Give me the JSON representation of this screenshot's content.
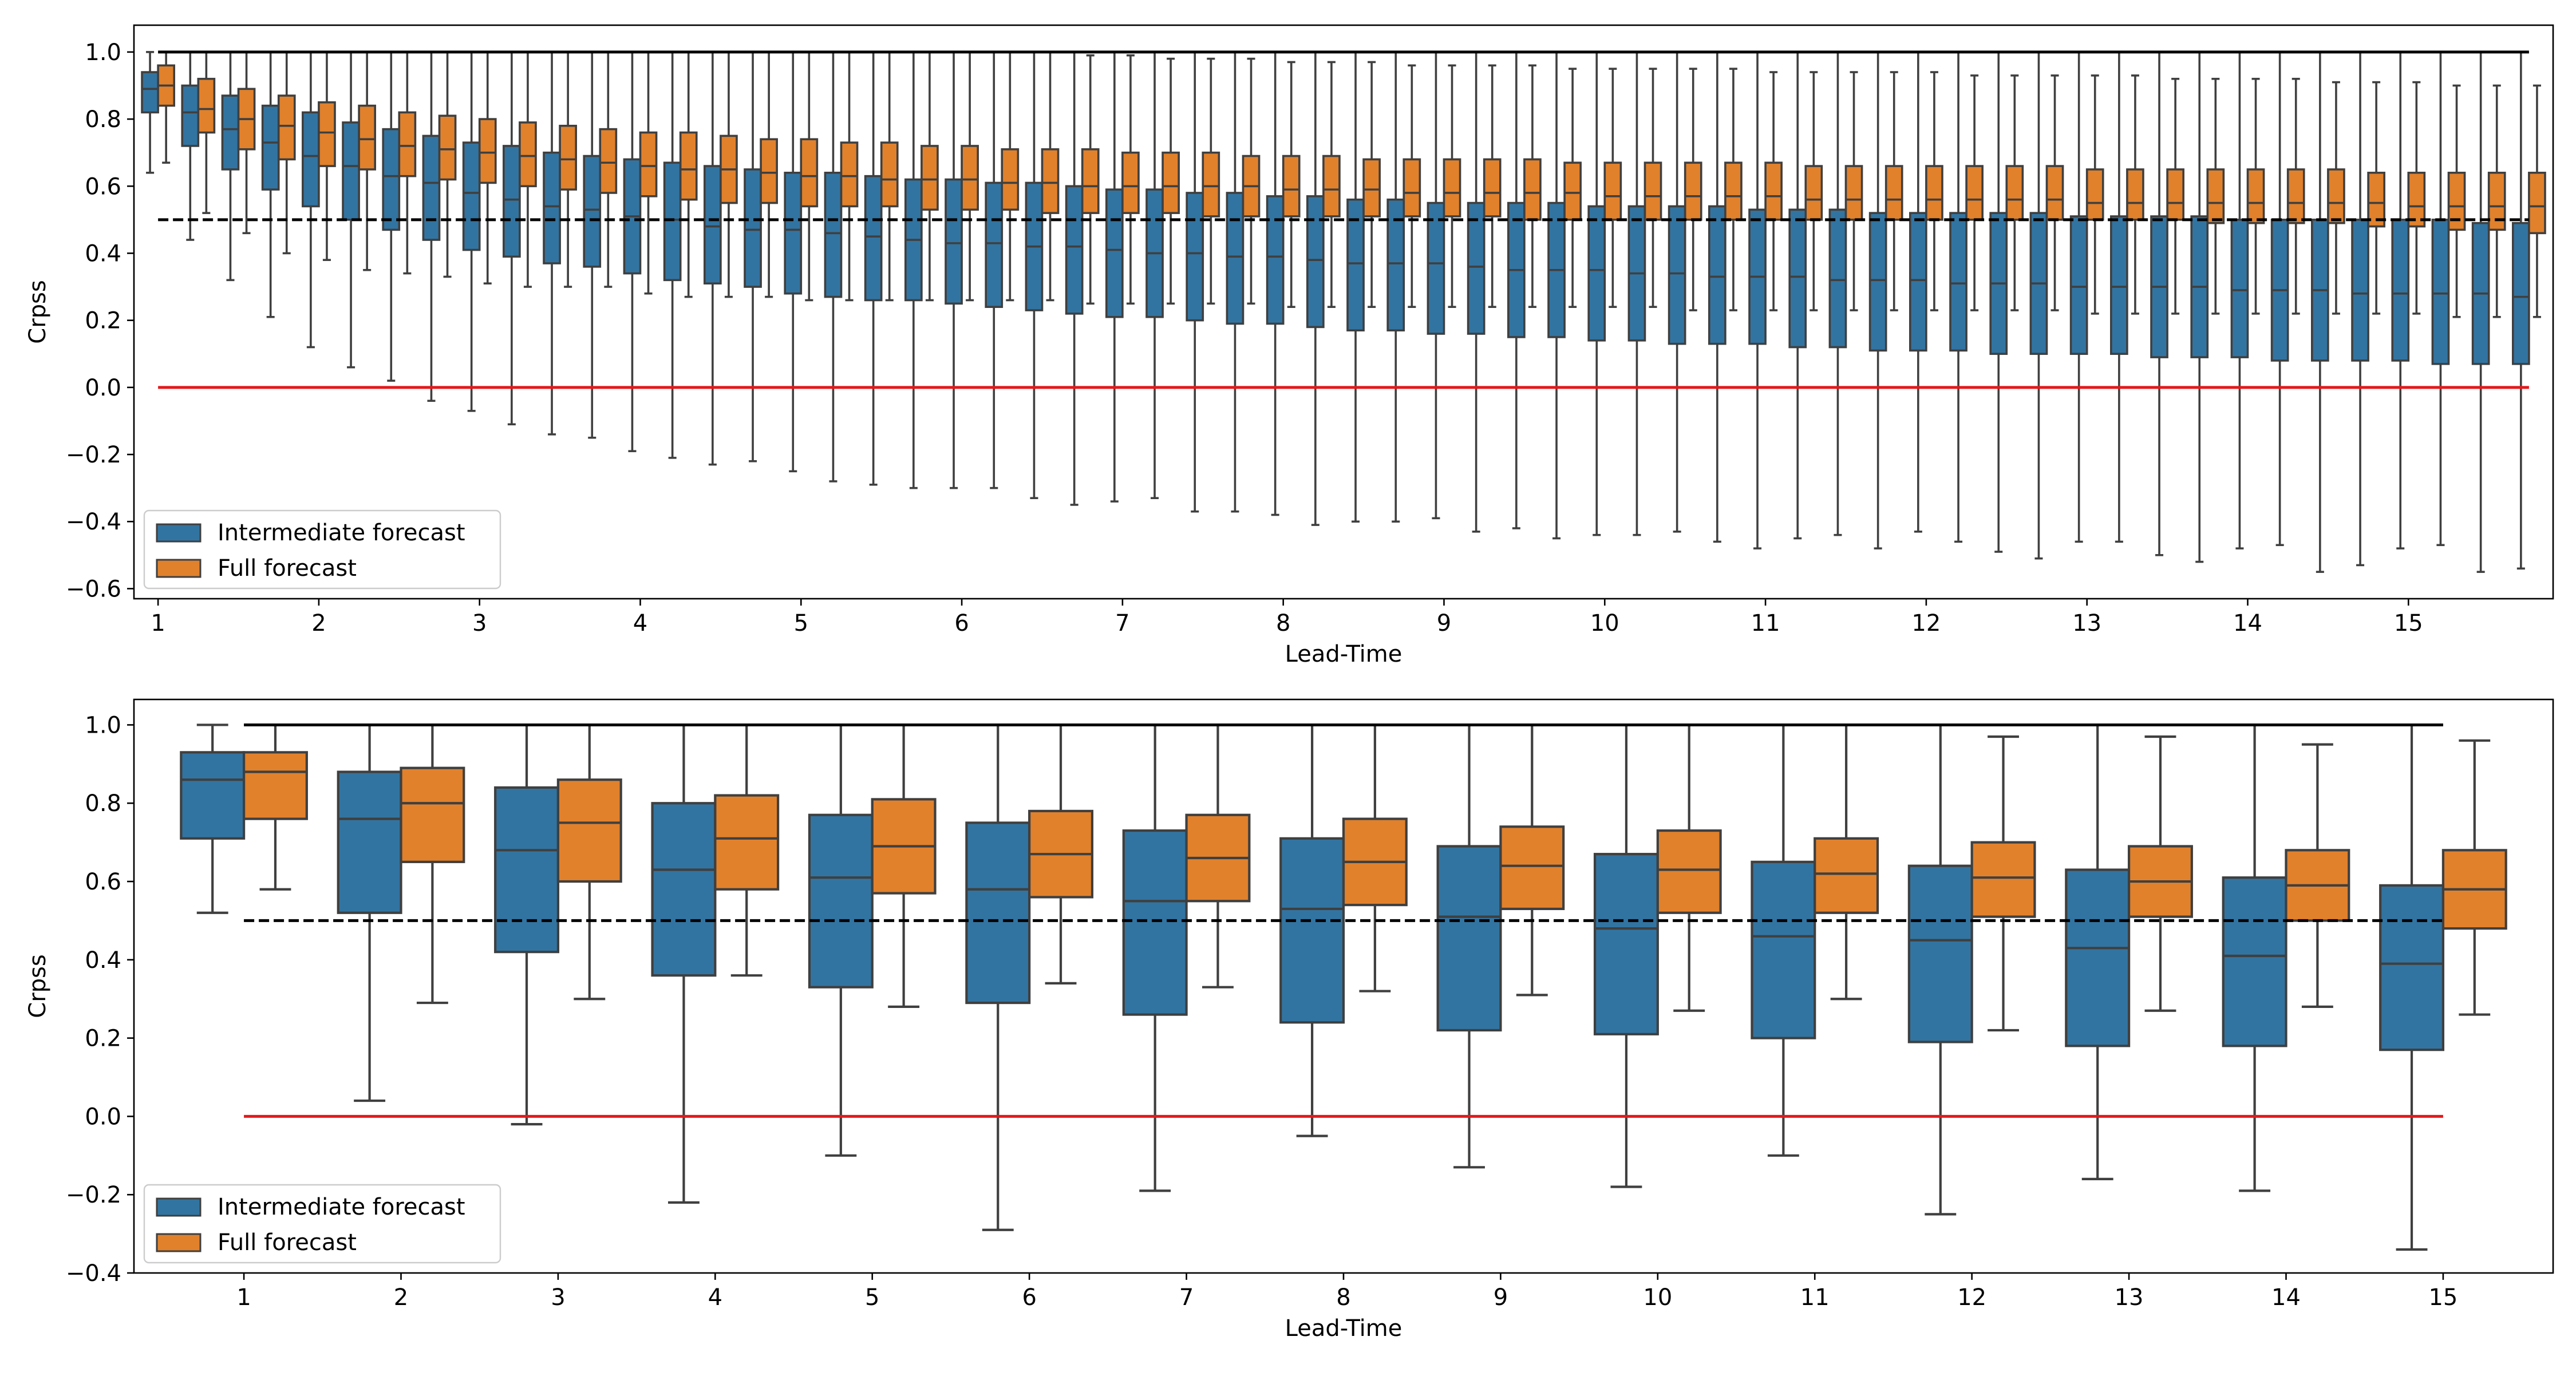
{
  "figure": {
    "colors": {
      "intermediate": "#3274a1",
      "full": "#e1812c",
      "edge": "#3f3f3f",
      "upper_ref": "#000000",
      "half_ref": "#000000",
      "zero_ref": "#e3191c"
    }
  },
  "chart_data": [
    {
      "type": "box",
      "xlabel": "Lead-Time",
      "ylabel": "Crpss",
      "ylim": [
        -0.63,
        1.08
      ],
      "yticks": [
        -0.6,
        -0.4,
        -0.2,
        0.0,
        0.2,
        0.4,
        0.6,
        0.8,
        1.0
      ],
      "ytick_labels": [
        "−0.6",
        "−0.4",
        "−0.2",
        "0.0",
        "0.2",
        "0.4",
        "0.6",
        "0.8",
        "1.0"
      ],
      "xrange": [
        0.85,
        15.9
      ],
      "xticks": [
        1,
        2,
        3,
        4,
        5,
        6,
        7,
        8,
        9,
        10,
        11,
        12,
        13,
        14,
        15
      ],
      "xtick_labels": [
        "1",
        "2",
        "3",
        "4",
        "5",
        "6",
        "7",
        "8",
        "9",
        "10",
        "11",
        "12",
        "13",
        "14",
        "15"
      ],
      "lead_time_start": 1.0,
      "lead_time_step": 0.25,
      "group_width": 0.2,
      "ref_lines": [
        {
          "y": 1.0,
          "x0": 1.0,
          "x1": 15.75,
          "style": "solid",
          "color_key": "upper_ref"
        },
        {
          "y": 0.5,
          "x0": 1.0,
          "x1": 15.75,
          "style": "dashed",
          "color_key": "half_ref"
        },
        {
          "y": 0.0,
          "x0": 1.0,
          "x1": 15.75,
          "style": "solid",
          "color_key": "zero_ref"
        }
      ],
      "legend": {
        "location": "lower left",
        "entries": [
          "Intermediate forecast",
          "Full forecast"
        ]
      },
      "series": [
        {
          "name": "Intermediate forecast",
          "color_key": "intermediate",
          "boxes": {
            "whislo": [
              0.64,
              0.44,
              0.32,
              0.21,
              0.12,
              0.06,
              0.02,
              -0.04,
              -0.07,
              -0.11,
              -0.14,
              -0.15,
              -0.19,
              -0.21,
              -0.23,
              -0.22,
              -0.25,
              -0.28,
              -0.29,
              -0.3,
              -0.3,
              -0.3,
              -0.33,
              -0.35,
              -0.34,
              -0.33,
              -0.37,
              -0.37,
              -0.38,
              -0.41,
              -0.4,
              -0.4,
              -0.39,
              -0.43,
              -0.42,
              -0.45,
              -0.44,
              -0.44,
              -0.43,
              -0.46,
              -0.48,
              -0.45,
              -0.44,
              -0.48,
              -0.43,
              -0.46,
              -0.49,
              -0.51,
              -0.46,
              -0.46,
              -0.5,
              -0.52,
              -0.48,
              -0.47,
              -0.55,
              -0.53,
              -0.48,
              -0.47,
              -0.55,
              -0.54
            ],
            "q1": [
              0.82,
              0.72,
              0.65,
              0.59,
              0.54,
              0.5,
              0.47,
              0.44,
              0.41,
              0.39,
              0.37,
              0.36,
              0.34,
              0.32,
              0.31,
              0.3,
              0.28,
              0.27,
              0.26,
              0.26,
              0.25,
              0.24,
              0.23,
              0.22,
              0.21,
              0.21,
              0.2,
              0.19,
              0.19,
              0.18,
              0.17,
              0.17,
              0.16,
              0.16,
              0.15,
              0.15,
              0.14,
              0.14,
              0.13,
              0.13,
              0.13,
              0.12,
              0.12,
              0.11,
              0.11,
              0.11,
              0.1,
              0.1,
              0.1,
              0.1,
              0.09,
              0.09,
              0.09,
              0.08,
              0.08,
              0.08,
              0.08,
              0.07,
              0.07,
              0.07
            ],
            "med": [
              0.89,
              0.82,
              0.77,
              0.73,
              0.69,
              0.66,
              0.63,
              0.61,
              0.58,
              0.56,
              0.54,
              0.53,
              0.51,
              0.5,
              0.48,
              0.47,
              0.47,
              0.46,
              0.45,
              0.44,
              0.43,
              0.43,
              0.42,
              0.42,
              0.41,
              0.4,
              0.4,
              0.39,
              0.39,
              0.38,
              0.37,
              0.37,
              0.37,
              0.36,
              0.35,
              0.35,
              0.35,
              0.34,
              0.34,
              0.33,
              0.33,
              0.33,
              0.32,
              0.32,
              0.32,
              0.31,
              0.31,
              0.31,
              0.3,
              0.3,
              0.3,
              0.3,
              0.29,
              0.29,
              0.29,
              0.28,
              0.28,
              0.28,
              0.28,
              0.27
            ],
            "q3": [
              0.94,
              0.9,
              0.87,
              0.84,
              0.82,
              0.79,
              0.77,
              0.75,
              0.73,
              0.72,
              0.7,
              0.69,
              0.68,
              0.67,
              0.66,
              0.65,
              0.64,
              0.64,
              0.63,
              0.62,
              0.62,
              0.61,
              0.61,
              0.6,
              0.59,
              0.59,
              0.58,
              0.58,
              0.57,
              0.57,
              0.56,
              0.56,
              0.55,
              0.55,
              0.55,
              0.55,
              0.54,
              0.54,
              0.54,
              0.54,
              0.53,
              0.53,
              0.53,
              0.52,
              0.52,
              0.52,
              0.52,
              0.52,
              0.51,
              0.51,
              0.51,
              0.51,
              0.5,
              0.5,
              0.5,
              0.5,
              0.5,
              0.5,
              0.49,
              0.49
            ],
            "whishi": [
              1.0,
              1.0,
              1.0,
              1.0,
              1.0,
              1.0,
              1.0,
              1.0,
              1.0,
              1.0,
              1.0,
              1.0,
              1.0,
              1.0,
              1.0,
              1.0,
              1.0,
              1.0,
              1.0,
              1.0,
              1.0,
              1.0,
              1.0,
              1.0,
              1.0,
              1.0,
              1.0,
              1.0,
              1.0,
              1.0,
              1.0,
              1.0,
              1.0,
              1.0,
              1.0,
              1.0,
              1.0,
              1.0,
              1.0,
              1.0,
              1.0,
              1.0,
              1.0,
              1.0,
              1.0,
              1.0,
              1.0,
              1.0,
              1.0,
              1.0,
              1.0,
              1.0,
              1.0,
              1.0,
              1.0,
              1.0,
              1.0,
              1.0,
              1.0,
              1.0
            ]
          }
        },
        {
          "name": "Full forecast",
          "color_key": "full",
          "boxes": {
            "whislo": [
              0.67,
              0.52,
              0.46,
              0.4,
              0.38,
              0.35,
              0.34,
              0.33,
              0.31,
              0.3,
              0.3,
              0.3,
              0.28,
              0.27,
              0.27,
              0.27,
              0.26,
              0.26,
              0.26,
              0.26,
              0.26,
              0.26,
              0.26,
              0.25,
              0.25,
              0.25,
              0.25,
              0.25,
              0.24,
              0.24,
              0.24,
              0.24,
              0.24,
              0.24,
              0.24,
              0.24,
              0.24,
              0.24,
              0.23,
              0.23,
              0.23,
              0.23,
              0.23,
              0.23,
              0.23,
              0.23,
              0.23,
              0.23,
              0.22,
              0.22,
              0.22,
              0.22,
              0.22,
              0.22,
              0.22,
              0.22,
              0.22,
              0.21,
              0.21,
              0.21
            ],
            "q1": [
              0.84,
              0.76,
              0.71,
              0.68,
              0.66,
              0.65,
              0.63,
              0.62,
              0.61,
              0.6,
              0.59,
              0.58,
              0.57,
              0.56,
              0.55,
              0.55,
              0.54,
              0.54,
              0.54,
              0.53,
              0.53,
              0.53,
              0.52,
              0.52,
              0.52,
              0.52,
              0.51,
              0.51,
              0.51,
              0.51,
              0.51,
              0.51,
              0.51,
              0.51,
              0.5,
              0.5,
              0.5,
              0.5,
              0.5,
              0.5,
              0.5,
              0.5,
              0.5,
              0.5,
              0.5,
              0.5,
              0.5,
              0.5,
              0.5,
              0.5,
              0.5,
              0.49,
              0.49,
              0.49,
              0.49,
              0.48,
              0.48,
              0.47,
              0.47,
              0.46
            ],
            "med": [
              0.9,
              0.83,
              0.8,
              0.78,
              0.76,
              0.74,
              0.72,
              0.71,
              0.7,
              0.69,
              0.68,
              0.67,
              0.66,
              0.65,
              0.65,
              0.64,
              0.63,
              0.63,
              0.62,
              0.62,
              0.62,
              0.61,
              0.61,
              0.6,
              0.6,
              0.6,
              0.6,
              0.6,
              0.59,
              0.59,
              0.59,
              0.58,
              0.58,
              0.58,
              0.58,
              0.58,
              0.57,
              0.57,
              0.57,
              0.57,
              0.57,
              0.56,
              0.56,
              0.56,
              0.56,
              0.56,
              0.56,
              0.56,
              0.55,
              0.55,
              0.55,
              0.55,
              0.55,
              0.55,
              0.55,
              0.55,
              0.54,
              0.54,
              0.54,
              0.54
            ],
            "q3": [
              0.96,
              0.92,
              0.89,
              0.87,
              0.85,
              0.84,
              0.82,
              0.81,
              0.8,
              0.79,
              0.78,
              0.77,
              0.76,
              0.76,
              0.75,
              0.74,
              0.74,
              0.73,
              0.73,
              0.72,
              0.72,
              0.71,
              0.71,
              0.71,
              0.7,
              0.7,
              0.7,
              0.69,
              0.69,
              0.69,
              0.68,
              0.68,
              0.68,
              0.68,
              0.68,
              0.67,
              0.67,
              0.67,
              0.67,
              0.67,
              0.67,
              0.66,
              0.66,
              0.66,
              0.66,
              0.66,
              0.66,
              0.66,
              0.65,
              0.65,
              0.65,
              0.65,
              0.65,
              0.65,
              0.65,
              0.64,
              0.64,
              0.64,
              0.64,
              0.64
            ],
            "whishi": [
              1.0,
              1.0,
              1.0,
              1.0,
              1.0,
              1.0,
              1.0,
              1.0,
              1.0,
              1.0,
              1.0,
              1.0,
              1.0,
              1.0,
              1.0,
              1.0,
              1.0,
              1.0,
              1.0,
              1.0,
              1.0,
              1.0,
              1.0,
              0.99,
              0.99,
              0.98,
              0.98,
              0.98,
              0.97,
              0.97,
              0.97,
              0.96,
              0.96,
              0.96,
              0.96,
              0.95,
              0.95,
              0.95,
              0.95,
              0.95,
              0.94,
              0.94,
              0.94,
              0.94,
              0.94,
              0.93,
              0.93,
              0.93,
              0.93,
              0.93,
              0.92,
              0.92,
              0.92,
              0.92,
              0.91,
              0.91,
              0.91,
              0.9,
              0.9,
              0.9
            ]
          }
        }
      ]
    },
    {
      "type": "box",
      "xlabel": "Lead-Time",
      "ylabel": "Crpss",
      "ylim": [
        -0.4,
        1.065
      ],
      "yticks": [
        -0.4,
        -0.2,
        0.0,
        0.2,
        0.4,
        0.6,
        0.8,
        1.0
      ],
      "ytick_labels": [
        "−0.4",
        "−0.2",
        "0.0",
        "0.2",
        "0.4",
        "0.6",
        "0.8",
        "1.0"
      ],
      "xrange": [
        0.3,
        15.7
      ],
      "xticks": [
        1,
        2,
        3,
        4,
        5,
        6,
        7,
        8,
        9,
        10,
        11,
        12,
        13,
        14,
        15
      ],
      "xtick_labels": [
        "1",
        "2",
        "3",
        "4",
        "5",
        "6",
        "7",
        "8",
        "9",
        "10",
        "11",
        "12",
        "13",
        "14",
        "15"
      ],
      "lead_time_start": 1.0,
      "lead_time_step": 1.0,
      "group_width": 0.8,
      "ref_lines": [
        {
          "y": 1.0,
          "x0": 1.0,
          "x1": 15.0,
          "style": "solid",
          "color_key": "upper_ref"
        },
        {
          "y": 0.5,
          "x0": 1.0,
          "x1": 15.0,
          "style": "dashed",
          "color_key": "half_ref"
        },
        {
          "y": 0.0,
          "x0": 1.0,
          "x1": 15.0,
          "style": "solid",
          "color_key": "zero_ref"
        }
      ],
      "legend": {
        "location": "lower left",
        "entries": [
          "Intermediate forecast",
          "Full forecast"
        ]
      },
      "series": [
        {
          "name": "Intermediate forecast",
          "color_key": "intermediate",
          "boxes": {
            "whislo": [
              0.52,
              0.04,
              -0.02,
              -0.22,
              -0.1,
              -0.29,
              -0.19,
              -0.05,
              -0.13,
              -0.18,
              -0.1,
              -0.25,
              -0.16,
              -0.19,
              -0.34
            ],
            "q1": [
              0.71,
              0.52,
              0.42,
              0.36,
              0.33,
              0.29,
              0.26,
              0.24,
              0.22,
              0.21,
              0.2,
              0.19,
              0.18,
              0.18,
              0.17
            ],
            "med": [
              0.86,
              0.76,
              0.68,
              0.63,
              0.61,
              0.58,
              0.55,
              0.53,
              0.51,
              0.48,
              0.46,
              0.45,
              0.43,
              0.41,
              0.39
            ],
            "q3": [
              0.93,
              0.88,
              0.84,
              0.8,
              0.77,
              0.75,
              0.73,
              0.71,
              0.69,
              0.67,
              0.65,
              0.64,
              0.63,
              0.61,
              0.59
            ],
            "whishi": [
              1.0,
              1.0,
              1.0,
              1.0,
              1.0,
              1.0,
              1.0,
              1.0,
              1.0,
              1.0,
              1.0,
              1.0,
              1.0,
              1.0,
              1.0
            ]
          }
        },
        {
          "name": "Full forecast",
          "color_key": "full",
          "boxes": {
            "whislo": [
              0.58,
              0.29,
              0.3,
              0.36,
              0.28,
              0.34,
              0.33,
              0.32,
              0.31,
              0.27,
              0.3,
              0.22,
              0.27,
              0.28,
              0.26
            ],
            "q1": [
              0.76,
              0.65,
              0.6,
              0.58,
              0.57,
              0.56,
              0.55,
              0.54,
              0.53,
              0.52,
              0.52,
              0.51,
              0.51,
              0.5,
              0.48
            ],
            "med": [
              0.88,
              0.8,
              0.75,
              0.71,
              0.69,
              0.67,
              0.66,
              0.65,
              0.64,
              0.63,
              0.62,
              0.61,
              0.6,
              0.59,
              0.58
            ],
            "q3": [
              0.93,
              0.89,
              0.86,
              0.82,
              0.81,
              0.78,
              0.77,
              0.76,
              0.74,
              0.73,
              0.71,
              0.7,
              0.69,
              0.68,
              0.68
            ],
            "whishi": [
              1.0,
              1.0,
              1.0,
              1.0,
              1.0,
              1.0,
              1.0,
              1.0,
              1.0,
              1.0,
              1.0,
              0.97,
              0.97,
              0.95,
              0.96
            ]
          }
        }
      ]
    }
  ]
}
